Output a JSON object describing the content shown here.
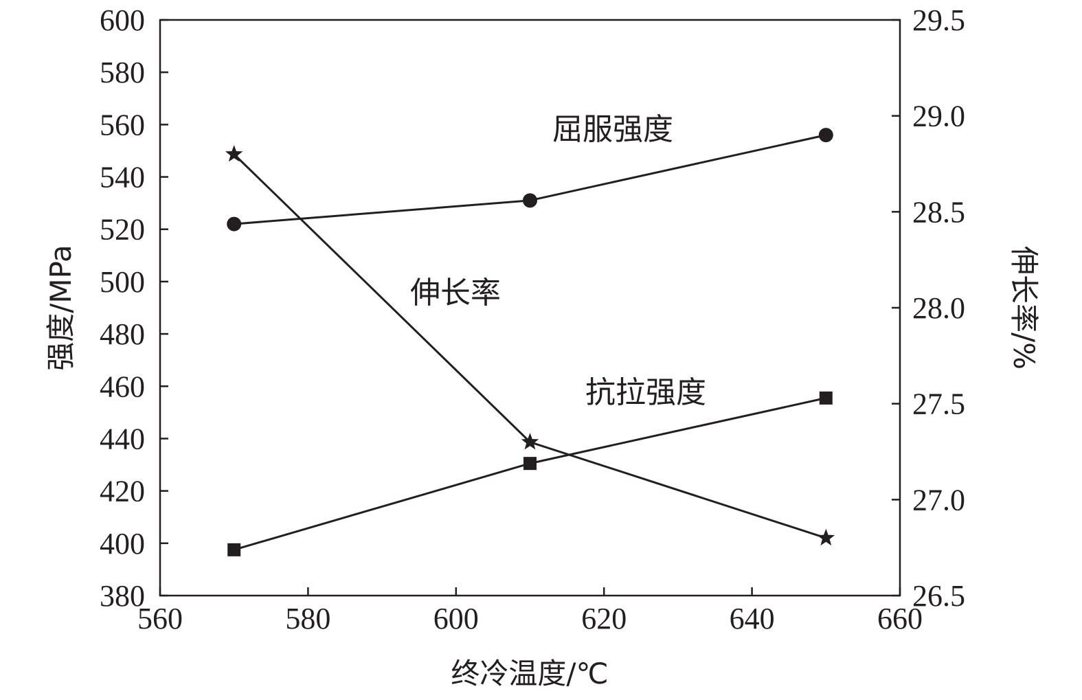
{
  "chart_data": {
    "type": "line",
    "x_axis": {
      "label": "终冷温度/℃",
      "range": [
        560,
        660
      ],
      "ticks": [
        560,
        580,
        600,
        620,
        640,
        660
      ]
    },
    "y_axis_left": {
      "label": "强度/MPa",
      "range": [
        380,
        600
      ],
      "ticks": [
        380,
        400,
        420,
        440,
        460,
        480,
        500,
        520,
        540,
        560,
        580,
        600
      ]
    },
    "y_axis_right": {
      "label": "伸长率/%",
      "range": [
        26.5,
        29.5
      ],
      "ticks": [
        "26.5",
        "27.0",
        "27.5",
        "28.0",
        "28.5",
        "29.0",
        "29.5"
      ]
    },
    "grid": false,
    "legend": "none",
    "series": [
      {
        "name": "屈服强度",
        "axis": "left",
        "marker": "circle",
        "x": [
          570,
          610,
          650
        ],
        "y": [
          522,
          531,
          556
        ]
      },
      {
        "name": "抗拉强度",
        "axis": "left",
        "marker": "square",
        "x": [
          570,
          610,
          650
        ],
        "y": [
          397.5,
          430.5,
          455.5
        ]
      },
      {
        "name": "伸长率",
        "axis": "right",
        "marker": "star",
        "x": [
          570,
          610,
          650
        ],
        "y": [
          28.8,
          27.3,
          26.8
        ]
      }
    ]
  }
}
